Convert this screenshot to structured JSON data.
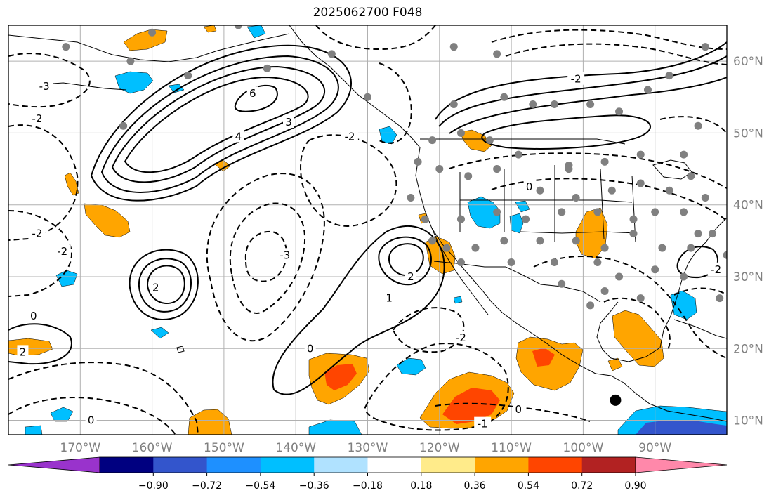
{
  "title": "2025062700 F048",
  "palette": {
    "frame": "#000000",
    "grid": "#b0b0b0",
    "tick_text": "#808080",
    "coast": "#000000",
    "station_dot": "#808080",
    "marker": "#000000"
  },
  "map": {
    "projection": "equirectangular",
    "lon_range": [
      -180,
      -80
    ],
    "lat_range": [
      8,
      65
    ],
    "lon_ticks": [
      {
        "value": -170,
        "label": "170°W"
      },
      {
        "value": -160,
        "label": "160°W"
      },
      {
        "value": -150,
        "label": "150°W"
      },
      {
        "value": -140,
        "label": "140°W"
      },
      {
        "value": -130,
        "label": "130°W"
      },
      {
        "value": -120,
        "label": "120°W"
      },
      {
        "value": -110,
        "label": "110°W"
      },
      {
        "value": -100,
        "label": "100°W"
      },
      {
        "value": -90,
        "label": "90°W"
      }
    ],
    "lat_ticks": [
      {
        "value": 10,
        "label": "10°N"
      },
      {
        "value": 20,
        "label": "20°N"
      },
      {
        "value": 30,
        "label": "30°N"
      },
      {
        "value": 40,
        "label": "40°N"
      },
      {
        "value": 50,
        "label": "50°N"
      },
      {
        "value": 60,
        "label": "60°N"
      }
    ],
    "contour_labels": [
      {
        "text": "6",
        "lon": -146,
        "lat": 55.5
      },
      {
        "text": "4",
        "lon": -148,
        "lat": 49.5
      },
      {
        "text": "3",
        "lon": -141,
        "lat": 51.5
      },
      {
        "text": "2",
        "lon": -159.5,
        "lat": 28.5
      },
      {
        "text": "2",
        "lon": -124,
        "lat": 30
      },
      {
        "text": "1",
        "lon": -127,
        "lat": 27
      },
      {
        "text": "0",
        "lon": -138,
        "lat": 20
      },
      {
        "text": "0",
        "lon": -176.5,
        "lat": 24.5
      },
      {
        "text": "2",
        "lon": -178,
        "lat": 19.5
      },
      {
        "text": "-2",
        "lon": -132.5,
        "lat": 49.5
      },
      {
        "text": "-3",
        "lon": -141.5,
        "lat": 33
      },
      {
        "text": "-2",
        "lon": -176,
        "lat": 36
      },
      {
        "text": "-2",
        "lon": -172.5,
        "lat": 33.5
      },
      {
        "text": "-2",
        "lon": -176,
        "lat": 52
      },
      {
        "text": "-2",
        "lon": -117,
        "lat": 21.5
      },
      {
        "text": "-1",
        "lon": -114,
        "lat": 9.5
      },
      {
        "text": "-2",
        "lon": -101,
        "lat": 57.5
      },
      {
        "text": "-2",
        "lon": -81.5,
        "lat": 31
      },
      {
        "text": "0",
        "lon": -109,
        "lat": 11.5
      },
      {
        "text": "0",
        "lon": -107.5,
        "lat": 42.5
      },
      {
        "text": "0",
        "lon": -168.5,
        "lat": 10
      },
      {
        "text": "-3",
        "lon": -175,
        "lat": 56.5
      }
    ],
    "station_dots": [
      [
        -163,
        60
      ],
      [
        -155,
        58
      ],
      [
        -144,
        59
      ],
      [
        -135,
        61
      ],
      [
        -118,
        62
      ],
      [
        -112,
        61
      ],
      [
        -111,
        55
      ],
      [
        -107,
        54
      ],
      [
        -104,
        54
      ],
      [
        -99,
        54
      ],
      [
        -95,
        53
      ],
      [
        -91,
        56
      ],
      [
        -84,
        51
      ],
      [
        -86,
        47
      ],
      [
        -92,
        47
      ],
      [
        -97,
        46
      ],
      [
        -102,
        45
      ],
      [
        -109,
        47
      ],
      [
        -113,
        49
      ],
      [
        -117,
        50
      ],
      [
        -121,
        49
      ],
      [
        -123,
        46
      ],
      [
        -120,
        45
      ],
      [
        -116,
        44
      ],
      [
        -112,
        45
      ],
      [
        -106,
        42
      ],
      [
        -101,
        41
      ],
      [
        -96,
        42
      ],
      [
        -92,
        43
      ],
      [
        -88,
        42
      ],
      [
        -85,
        44
      ],
      [
        -83,
        41
      ],
      [
        -117,
        38
      ],
      [
        -112,
        39
      ],
      [
        -108,
        38
      ],
      [
        -103,
        39
      ],
      [
        -98,
        39
      ],
      [
        -93,
        38
      ],
      [
        -90,
        39
      ],
      [
        -86,
        39
      ],
      [
        -82,
        36
      ],
      [
        -115,
        34
      ],
      [
        -111,
        35
      ],
      [
        -106,
        35
      ],
      [
        -101,
        35
      ],
      [
        -97,
        34
      ],
      [
        -93,
        36
      ],
      [
        -89,
        34
      ],
      [
        -85,
        34
      ],
      [
        -117,
        32
      ],
      [
        -110,
        32
      ],
      [
        -104,
        32
      ],
      [
        -98,
        32
      ],
      [
        -95,
        30
      ],
      [
        -90,
        31
      ],
      [
        -86,
        30
      ],
      [
        -103,
        29
      ],
      [
        -97,
        28
      ],
      [
        -92,
        27
      ],
      [
        -99,
        26
      ],
      [
        -80,
        33
      ],
      [
        -81,
        27
      ],
      [
        -84,
        36
      ],
      [
        -102,
        45.5
      ],
      [
        -124,
        41
      ],
      [
        -122,
        38
      ],
      [
        -121,
        35
      ],
      [
        -119,
        34
      ],
      [
        -118,
        54
      ],
      [
        -88,
        58
      ],
      [
        -83,
        62
      ],
      [
        -130,
        55
      ],
      [
        -148,
        65
      ],
      [
        -164,
        51
      ],
      [
        -172,
        62
      ],
      [
        -160,
        64
      ]
    ],
    "marker": {
      "lon": -95.5,
      "lat": 12.8
    }
  },
  "colorbar": {
    "ticks": [
      "−0.90",
      "−0.72",
      "−0.54",
      "−0.36",
      "−0.18",
      "0.18",
      "0.36",
      "0.54",
      "0.72",
      "0.90"
    ],
    "colors": [
      "#9933cc",
      "#000080",
      "#3355cc",
      "#1e90ff",
      "#00bfff",
      "#b0e2ff",
      "#ffffff",
      "#ffeb8a",
      "#ffa500",
      "#ff4500",
      "#b22222",
      "#ff88aa"
    ]
  }
}
